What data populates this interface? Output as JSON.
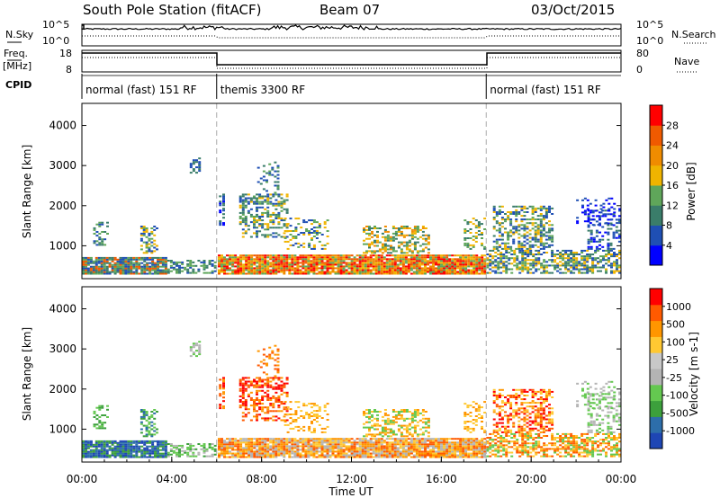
{
  "header": {
    "station": "South Pole Station (fitACF)",
    "beam": "Beam 07",
    "date": "03/Oct/2015"
  },
  "noise_panel": {
    "left_label": "N.Sky",
    "right_label": "N.Search",
    "left_ticks": [
      "10^5",
      "10^0"
    ],
    "right_ticks": [
      "10^5",
      "10^0"
    ]
  },
  "freq_panel": {
    "left_label_1": "Freq.",
    "left_label_2": "[MHz]",
    "right_label": "Nave",
    "left_ticks": [
      "18",
      "8"
    ],
    "right_ticks": [
      "80",
      "0"
    ]
  },
  "cpid": {
    "label": "CPID",
    "segments": [
      {
        "text": "normal (fast) 151 RF",
        "start_hour": 0,
        "end_hour": 6
      },
      {
        "text": "themis 3300 RF",
        "start_hour": 6,
        "end_hour": 18
      },
      {
        "text": "normal (fast) 151 RF",
        "start_hour": 18,
        "end_hour": 24
      }
    ]
  },
  "colors": {
    "power_scale": [
      "#0000ff",
      "#1f4fb4",
      "#3a7d6a",
      "#5fa65a",
      "#f0b400",
      "#f08c00",
      "#f05a00",
      "#ff0000"
    ],
    "velocity_scale": [
      "#ff0000",
      "#ff5a00",
      "#ff9600",
      "#ffc832",
      "#c8c8c8",
      "#b4b4b4",
      "#64c850",
      "#3ca03c",
      "#2d6eaa",
      "#1e46b4"
    ]
  },
  "chart_data": [
    {
      "type": "heatmap",
      "name": "power",
      "ylabel": "Slant Range [km]",
      "ylim": [
        180,
        4550
      ],
      "yticks": [
        "1000",
        "2000",
        "3000",
        "4000"
      ],
      "ytick_values": [
        1000,
        2000,
        3000,
        4000
      ],
      "xlim": [
        0,
        24
      ],
      "colorbar": {
        "label": "Power [dB]",
        "ticks": [
          "4",
          "8",
          "12",
          "16",
          "20",
          "24",
          "28"
        ],
        "tick_values": [
          4,
          8,
          12,
          16,
          20,
          24,
          28
        ],
        "range": [
          0,
          32
        ]
      }
    },
    {
      "type": "heatmap",
      "name": "velocity",
      "ylabel": "Slant Range [km]",
      "ylim": [
        180,
        4550
      ],
      "yticks": [
        "1000",
        "2000",
        "3000",
        "4000"
      ],
      "ytick_values": [
        1000,
        2000,
        3000,
        4000
      ],
      "xlim": [
        0,
        24
      ],
      "xlabel": "Time UT",
      "xticks": [
        "00:00",
        "04:00",
        "08:00",
        "12:00",
        "16:00",
        "20:00",
        "00:00"
      ],
      "xtick_values": [
        0,
        4,
        8,
        12,
        16,
        20,
        24
      ],
      "colorbar": {
        "label": "Velocity [m s-1]",
        "ticks": [
          "1000",
          "500",
          "100",
          "25",
          "-25",
          "-100",
          "-500",
          "-1000"
        ]
      }
    }
  ]
}
